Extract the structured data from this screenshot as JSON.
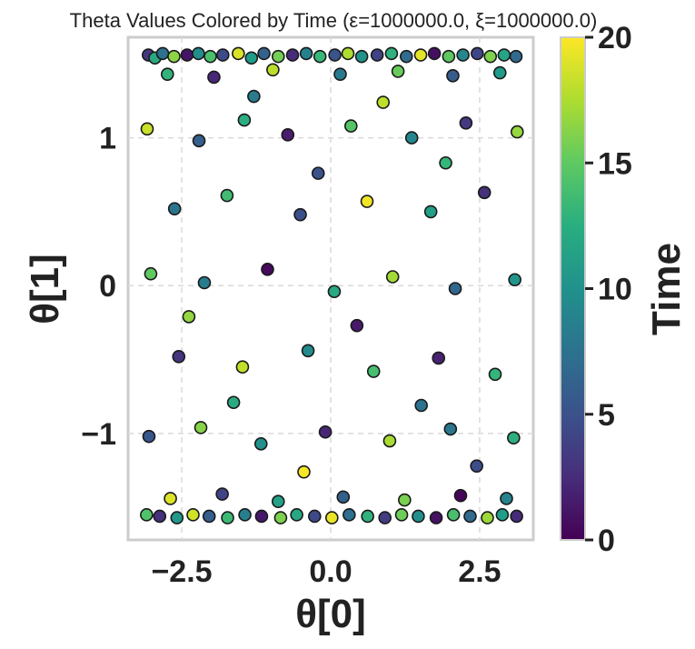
{
  "chart_data": {
    "type": "scatter",
    "title": "Theta Values Colored by Time (ε=1000000.0, ξ=1000000.0)",
    "xlabel": "θ[0]",
    "ylabel": "θ[1]",
    "xlim": [
      -3.4,
      3.4
    ],
    "ylim": [
      -1.72,
      1.68
    ],
    "xticks": [
      -2.5,
      0.0,
      2.5
    ],
    "xtick_labels": [
      "−2.5",
      "0.0",
      "2.5"
    ],
    "yticks": [
      -1,
      0,
      1
    ],
    "ytick_labels": [
      "−1",
      "0",
      "1"
    ],
    "grid": true,
    "colorbar": {
      "label": "Time",
      "colormap": "viridis",
      "range": [
        0,
        20
      ],
      "ticks": [
        0,
        5,
        10,
        15,
        20
      ],
      "tick_labels": [
        "0",
        "5",
        "10",
        "15",
        "20"
      ]
    },
    "marker": {
      "edge_color": "#1a1a1a"
    },
    "points": [
      {
        "x": -3.06,
        "y": 1.56,
        "t": 3.2
      },
      {
        "x": -2.95,
        "y": 1.54,
        "t": 12.1
      },
      {
        "x": -2.82,
        "y": 1.57,
        "t": 7.4
      },
      {
        "x": -2.63,
        "y": 1.55,
        "t": 16.5
      },
      {
        "x": -2.41,
        "y": 1.56,
        "t": 1.1
      },
      {
        "x": -2.22,
        "y": 1.57,
        "t": 9.8
      },
      {
        "x": -2.02,
        "y": 1.55,
        "t": 14.2
      },
      {
        "x": -1.81,
        "y": 1.56,
        "t": 4.6
      },
      {
        "x": -1.55,
        "y": 1.57,
        "t": 18.9
      },
      {
        "x": -1.33,
        "y": 1.54,
        "t": 11.0
      },
      {
        "x": -1.12,
        "y": 1.57,
        "t": 6.3
      },
      {
        "x": -0.88,
        "y": 1.55,
        "t": 15.7
      },
      {
        "x": -0.64,
        "y": 1.56,
        "t": 2.5
      },
      {
        "x": -0.41,
        "y": 1.57,
        "t": 8.9
      },
      {
        "x": -0.18,
        "y": 1.55,
        "t": 13.4
      },
      {
        "x": 0.07,
        "y": 1.56,
        "t": 5.1
      },
      {
        "x": 0.29,
        "y": 1.57,
        "t": 17.6
      },
      {
        "x": 0.52,
        "y": 1.55,
        "t": 10.2
      },
      {
        "x": 0.78,
        "y": 1.56,
        "t": 3.9
      },
      {
        "x": 1.02,
        "y": 1.57,
        "t": 12.8
      },
      {
        "x": 1.27,
        "y": 1.55,
        "t": 7.0
      },
      {
        "x": 1.51,
        "y": 1.56,
        "t": 19.2
      },
      {
        "x": 1.74,
        "y": 1.57,
        "t": 0.8
      },
      {
        "x": 1.98,
        "y": 1.55,
        "t": 14.9
      },
      {
        "x": 2.22,
        "y": 1.56,
        "t": 9.3
      },
      {
        "x": 2.46,
        "y": 1.57,
        "t": 4.2
      },
      {
        "x": 2.68,
        "y": 1.55,
        "t": 16.1
      },
      {
        "x": 2.91,
        "y": 1.56,
        "t": 11.7
      },
      {
        "x": 3.11,
        "y": 1.55,
        "t": 6.8
      },
      {
        "x": -2.74,
        "y": 1.43,
        "t": 13.0
      },
      {
        "x": -1.96,
        "y": 1.41,
        "t": 2.2
      },
      {
        "x": -0.97,
        "y": 1.46,
        "t": 17.9
      },
      {
        "x": 0.16,
        "y": 1.43,
        "t": 8.1
      },
      {
        "x": 1.13,
        "y": 1.45,
        "t": 15.3
      },
      {
        "x": 2.05,
        "y": 1.42,
        "t": 5.7
      },
      {
        "x": 2.84,
        "y": 1.44,
        "t": 10.9
      },
      {
        "x": -3.08,
        "y": 1.06,
        "t": 18.4
      },
      {
        "x": -2.21,
        "y": 0.98,
        "t": 6.0
      },
      {
        "x": -1.45,
        "y": 1.12,
        "t": 12.4
      },
      {
        "x": -0.72,
        "y": 1.02,
        "t": 1.6
      },
      {
        "x": 0.34,
        "y": 1.08,
        "t": 14.6
      },
      {
        "x": 1.36,
        "y": 1.0,
        "t": 9.1
      },
      {
        "x": 2.27,
        "y": 1.1,
        "t": 3.4
      },
      {
        "x": 3.13,
        "y": 1.04,
        "t": 16.8
      },
      {
        "x": -2.62,
        "y": 0.52,
        "t": 7.7
      },
      {
        "x": -1.74,
        "y": 0.61,
        "t": 13.8
      },
      {
        "x": -0.51,
        "y": 0.48,
        "t": 4.9
      },
      {
        "x": 0.61,
        "y": 0.57,
        "t": 19.6
      },
      {
        "x": 1.68,
        "y": 0.5,
        "t": 11.3
      },
      {
        "x": 2.58,
        "y": 0.63,
        "t": 2.8
      },
      {
        "x": -3.02,
        "y": 0.08,
        "t": 15.0
      },
      {
        "x": -2.12,
        "y": 0.02,
        "t": 8.4
      },
      {
        "x": -1.06,
        "y": 0.11,
        "t": 0.5
      },
      {
        "x": 0.06,
        "y": -0.04,
        "t": 12.0
      },
      {
        "x": 1.04,
        "y": 0.06,
        "t": 17.2
      },
      {
        "x": 2.09,
        "y": -0.02,
        "t": 6.6
      },
      {
        "x": 3.09,
        "y": 0.04,
        "t": 10.4
      },
      {
        "x": -2.55,
        "y": -0.48,
        "t": 3.0
      },
      {
        "x": -1.48,
        "y": -0.55,
        "t": 18.1
      },
      {
        "x": -0.38,
        "y": -0.44,
        "t": 9.6
      },
      {
        "x": 0.72,
        "y": -0.58,
        "t": 14.0
      },
      {
        "x": 1.81,
        "y": -0.49,
        "t": 1.9
      },
      {
        "x": 2.76,
        "y": -0.6,
        "t": 13.1
      },
      {
        "x": -3.05,
        "y": -1.02,
        "t": 5.4
      },
      {
        "x": -2.18,
        "y": -0.96,
        "t": 16.3
      },
      {
        "x": -1.17,
        "y": -1.07,
        "t": 10.0
      },
      {
        "x": -0.09,
        "y": -0.99,
        "t": 2.1
      },
      {
        "x": 0.99,
        "y": -1.05,
        "t": 17.4
      },
      {
        "x": 2.01,
        "y": -0.97,
        "t": 7.9
      },
      {
        "x": 3.07,
        "y": -1.03,
        "t": 12.6
      },
      {
        "x": -2.69,
        "y": -1.44,
        "t": 19.0
      },
      {
        "x": -1.82,
        "y": -1.41,
        "t": 4.0
      },
      {
        "x": -0.88,
        "y": -1.46,
        "t": 11.5
      },
      {
        "x": 0.21,
        "y": -1.43,
        "t": 6.1
      },
      {
        "x": 1.24,
        "y": -1.45,
        "t": 15.9
      },
      {
        "x": 2.18,
        "y": -1.42,
        "t": 0.3
      },
      {
        "x": 2.95,
        "y": -1.44,
        "t": 9.0
      },
      {
        "x": -3.09,
        "y": -1.55,
        "t": 14.4
      },
      {
        "x": -2.87,
        "y": -1.56,
        "t": 2.7
      },
      {
        "x": -2.58,
        "y": -1.57,
        "t": 10.6
      },
      {
        "x": -2.31,
        "y": -1.55,
        "t": 18.6
      },
      {
        "x": -2.04,
        "y": -1.56,
        "t": 5.9
      },
      {
        "x": -1.73,
        "y": -1.57,
        "t": 13.6
      },
      {
        "x": -1.44,
        "y": -1.55,
        "t": 8.6
      },
      {
        "x": -1.16,
        "y": -1.56,
        "t": 1.3
      },
      {
        "x": -0.84,
        "y": -1.57,
        "t": 16.0
      },
      {
        "x": -0.57,
        "y": -1.55,
        "t": 11.9
      },
      {
        "x": -0.27,
        "y": -1.56,
        "t": 4.4
      },
      {
        "x": 0.02,
        "y": -1.57,
        "t": 19.4
      },
      {
        "x": 0.31,
        "y": -1.55,
        "t": 7.2
      },
      {
        "x": 0.62,
        "y": -1.56,
        "t": 12.9
      },
      {
        "x": 0.91,
        "y": -1.57,
        "t": 3.6
      },
      {
        "x": 1.19,
        "y": -1.55,
        "t": 15.5
      },
      {
        "x": 1.47,
        "y": -1.56,
        "t": 9.9
      },
      {
        "x": 1.77,
        "y": -1.57,
        "t": 0.9
      },
      {
        "x": 2.06,
        "y": -1.55,
        "t": 14.1
      },
      {
        "x": 2.34,
        "y": -1.56,
        "t": 6.9
      },
      {
        "x": 2.63,
        "y": -1.57,
        "t": 17.0
      },
      {
        "x": 2.88,
        "y": -1.55,
        "t": 11.1
      },
      {
        "x": 3.12,
        "y": -1.56,
        "t": 2.4
      },
      {
        "x": -1.29,
        "y": 1.28,
        "t": 8.3
      },
      {
        "x": 0.88,
        "y": 1.24,
        "t": 18.0
      },
      {
        "x": -0.21,
        "y": 0.76,
        "t": 5.0
      },
      {
        "x": 1.93,
        "y": 0.83,
        "t": 13.3
      },
      {
        "x": -2.38,
        "y": -0.21,
        "t": 16.7
      },
      {
        "x": 0.44,
        "y": -0.27,
        "t": 1.4
      },
      {
        "x": -1.63,
        "y": -0.79,
        "t": 12.2
      },
      {
        "x": 1.52,
        "y": -0.81,
        "t": 7.5
      },
      {
        "x": -0.45,
        "y": -1.26,
        "t": 19.8
      },
      {
        "x": 2.45,
        "y": -1.22,
        "t": 4.7
      }
    ]
  }
}
